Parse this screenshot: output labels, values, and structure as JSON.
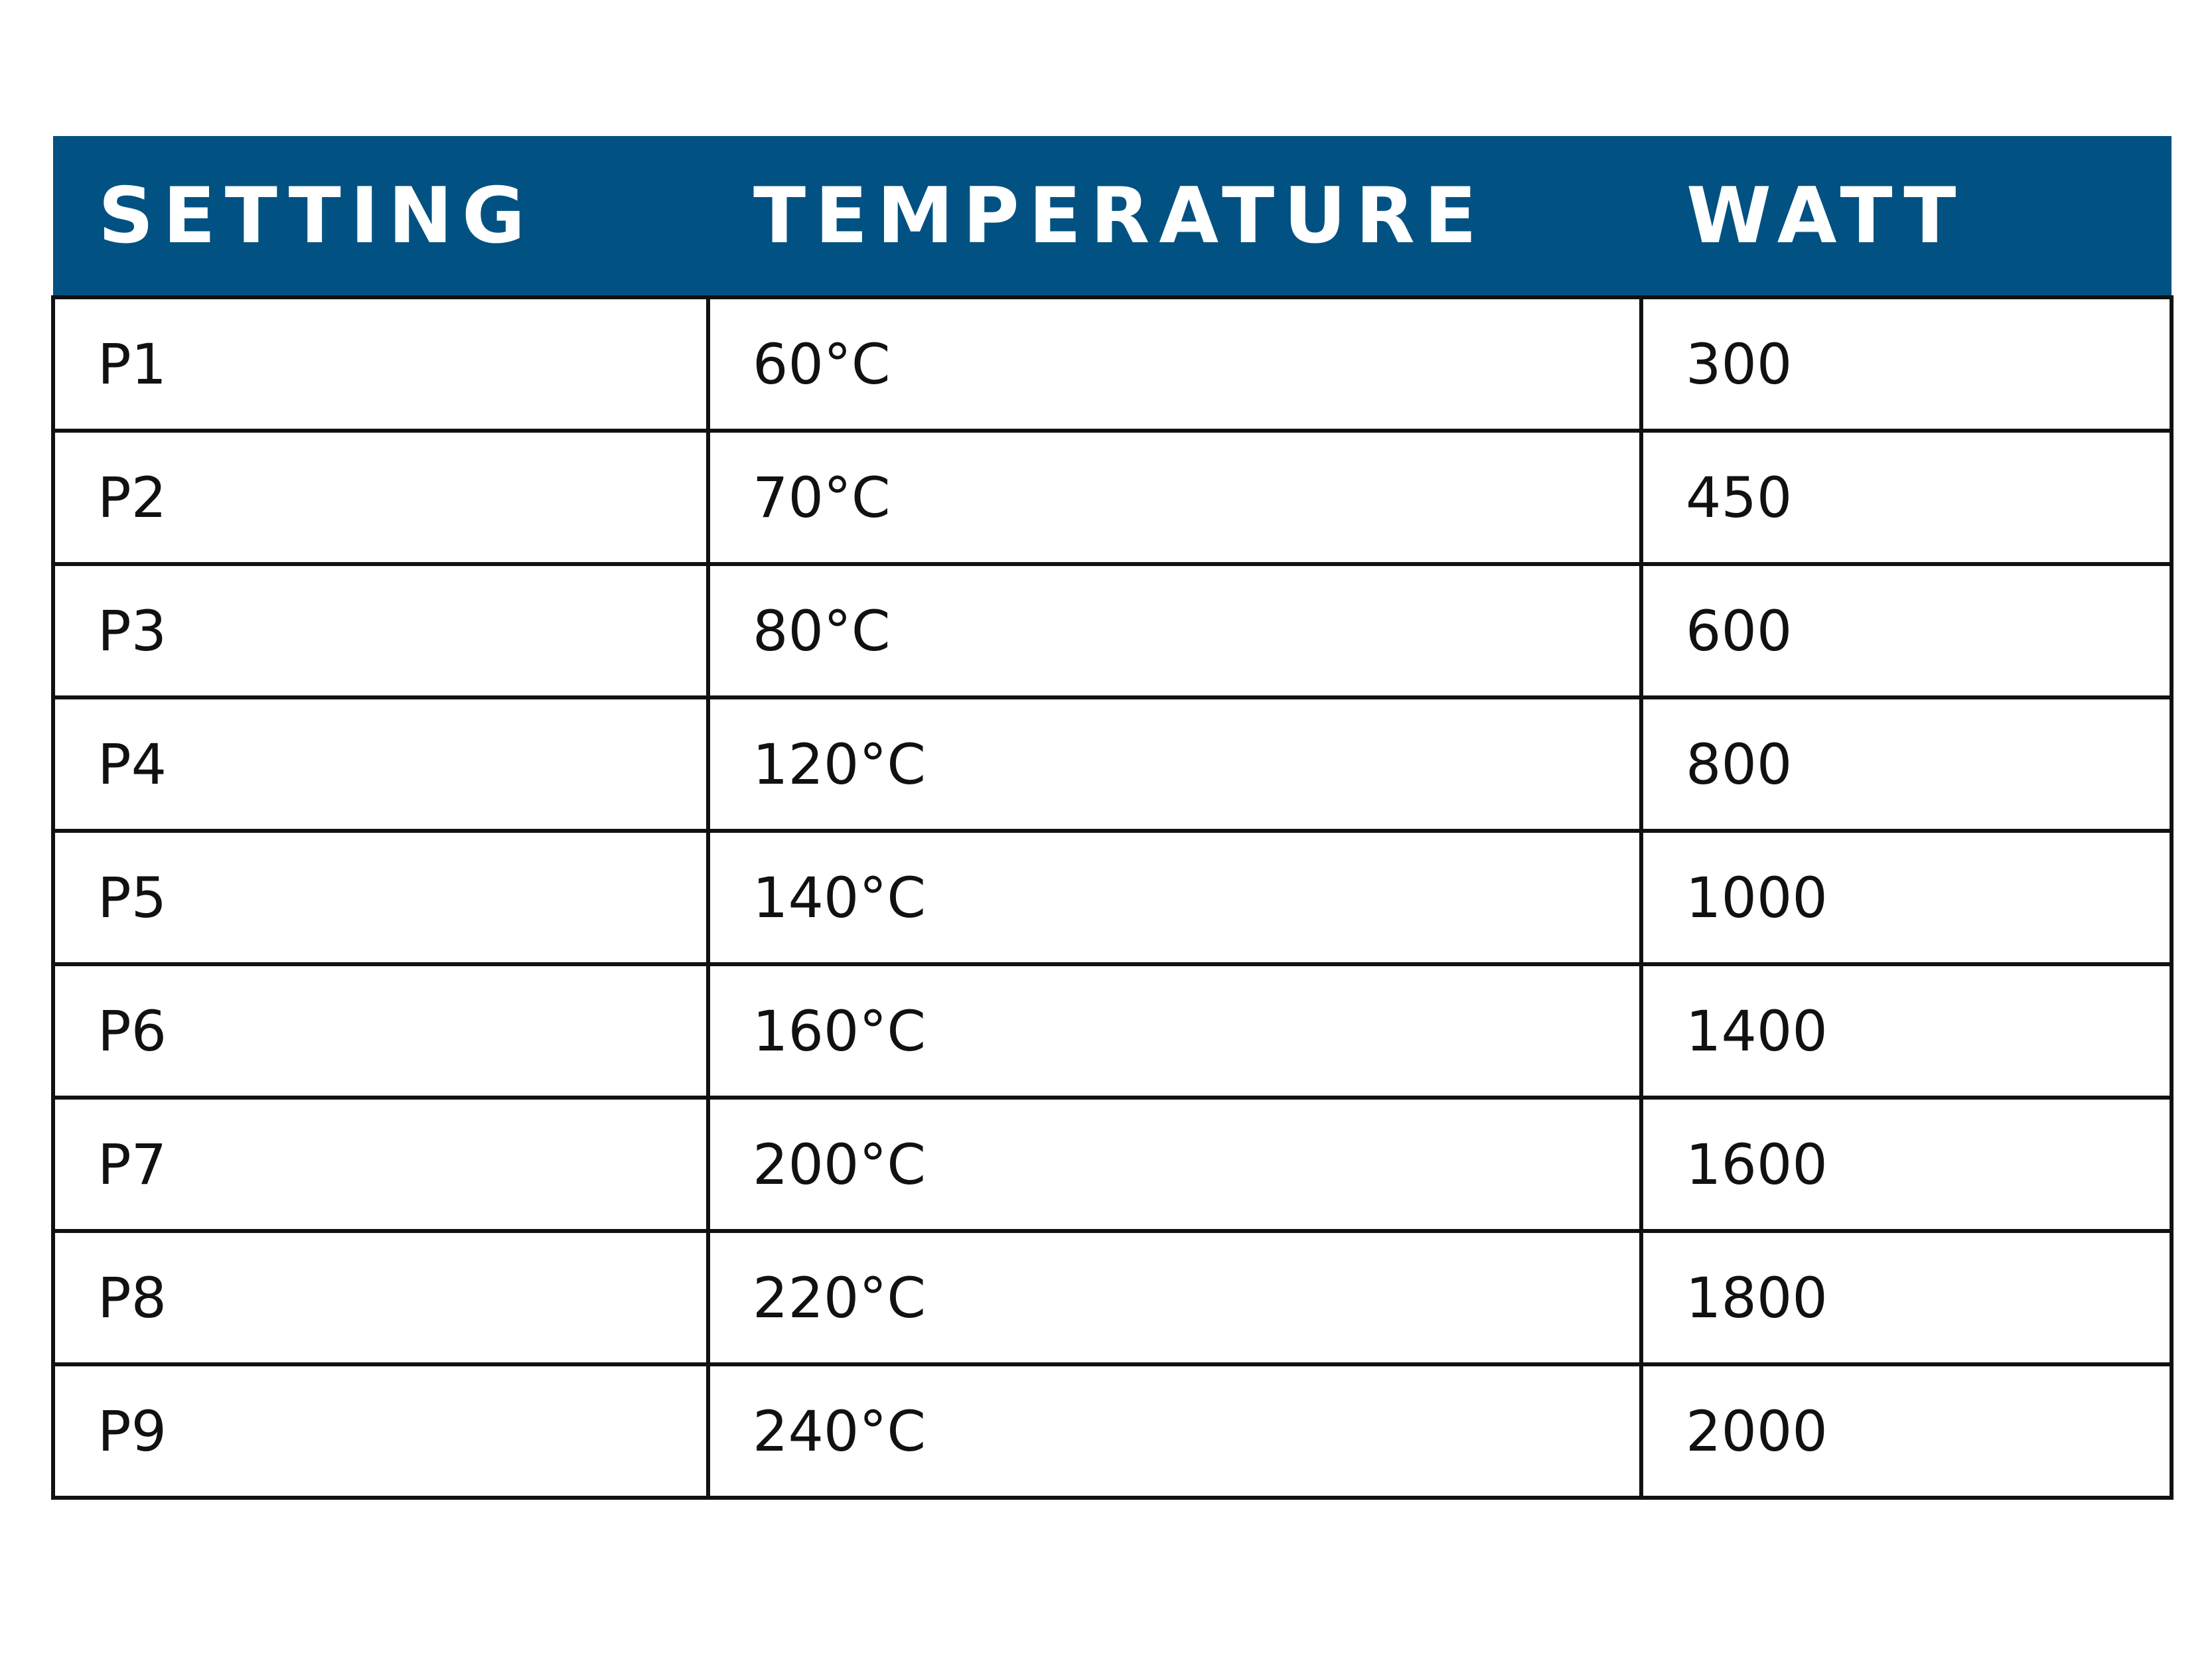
{
  "table": {
    "headers": [
      "SETTING",
      "TEMPERATURE",
      "WATT"
    ],
    "rows": [
      {
        "setting": "P1",
        "temperature": "60°C",
        "watt": "300"
      },
      {
        "setting": "P2",
        "temperature": "70°C",
        "watt": "450"
      },
      {
        "setting": "P3",
        "temperature": "80°C",
        "watt": "600"
      },
      {
        "setting": "P4",
        "temperature": "120°C",
        "watt": "800"
      },
      {
        "setting": "P5",
        "temperature": "140°C",
        "watt": "1000"
      },
      {
        "setting": "P6",
        "temperature": "160°C",
        "watt": "1400"
      },
      {
        "setting": "P7",
        "temperature": "200°C",
        "watt": "1600"
      },
      {
        "setting": "P8",
        "temperature": "220°C",
        "watt": "1800"
      },
      {
        "setting": "P9",
        "temperature": "240°C",
        "watt": "2000"
      }
    ]
  },
  "colors": {
    "header_background": "#015282",
    "header_text": "#ffffff",
    "grid_lines": "#111111"
  }
}
